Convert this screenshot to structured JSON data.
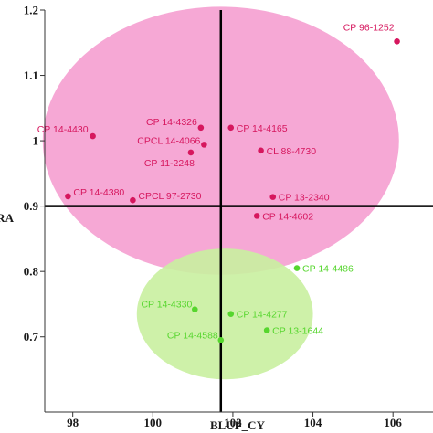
{
  "chart_data": {
    "type": "scatter",
    "xlabel": "BLUP_CY",
    "ylabel": "RA",
    "xlim": [
      97.3,
      107.0
    ],
    "ylim": [
      0.585,
      1.2
    ],
    "xticks": [
      {
        "value": 98,
        "label": "98"
      },
      {
        "value": 100,
        "label": "100"
      },
      {
        "value": 102,
        "label": "102"
      },
      {
        "value": 104,
        "label": "104"
      },
      {
        "value": 106,
        "label": "106"
      }
    ],
    "yticks": [
      {
        "value": 0.7,
        "label": "0.7"
      },
      {
        "value": 0.8,
        "label": "0.8"
      },
      {
        "value": 0.9,
        "label": "0.9"
      },
      {
        "value": 1.0,
        "label": "1"
      },
      {
        "value": 1.1,
        "label": "1.1"
      },
      {
        "value": 1.2,
        "label": "1.2"
      }
    ],
    "reference_lines": {
      "x": 101.7,
      "y": 0.9
    },
    "grid": false,
    "series": [
      {
        "color": "#d6175e",
        "ellipse_fill": "#f59fd0",
        "ellipse": {
          "cx": 101.7,
          "cy": 1.0,
          "rx": 4.45,
          "ry": 0.205
        },
        "points": [
          {
            "label": "CP 96-1252",
            "x": 106.1,
            "y": 1.152
          },
          {
            "label": "CP 14-4326",
            "x": 101.2,
            "y": 1.02
          },
          {
            "label": "CP 14-4165",
            "x": 101.95,
            "y": 1.02
          },
          {
            "label": "CP 14-4430",
            "x": 98.5,
            "y": 1.007
          },
          {
            "label": "CPCL 14-4066",
            "x": 101.28,
            "y": 0.994
          },
          {
            "label": "CL 88-4730",
            "x": 102.7,
            "y": 0.985
          },
          {
            "label": "CP 11-2248",
            "x": 100.95,
            "y": 0.982
          },
          {
            "label": "CP 14-4380",
            "x": 97.88,
            "y": 0.915
          },
          {
            "label": "CPCL 97-2730",
            "x": 99.5,
            "y": 0.909
          },
          {
            "label": "CP 13-2340",
            "x": 103.0,
            "y": 0.914
          },
          {
            "label": "CP 14-4602",
            "x": 102.6,
            "y": 0.885
          }
        ]
      },
      {
        "color": "#56d62e",
        "ellipse_fill": "#c9f0a0",
        "ellipse": {
          "cx": 101.8,
          "cy": 0.735,
          "rx": 2.2,
          "ry": 0.1
        },
        "points": [
          {
            "label": "CP 14-4486",
            "x": 103.6,
            "y": 0.805
          },
          {
            "label": "CP 14-4330",
            "x": 101.05,
            "y": 0.742
          },
          {
            "label": "CP 14-4277",
            "x": 101.95,
            "y": 0.735
          },
          {
            "label": "CP 13-1644",
            "x": 102.85,
            "y": 0.71
          },
          {
            "label": "CP 14-4588",
            "x": 101.7,
            "y": 0.695
          }
        ]
      }
    ]
  }
}
